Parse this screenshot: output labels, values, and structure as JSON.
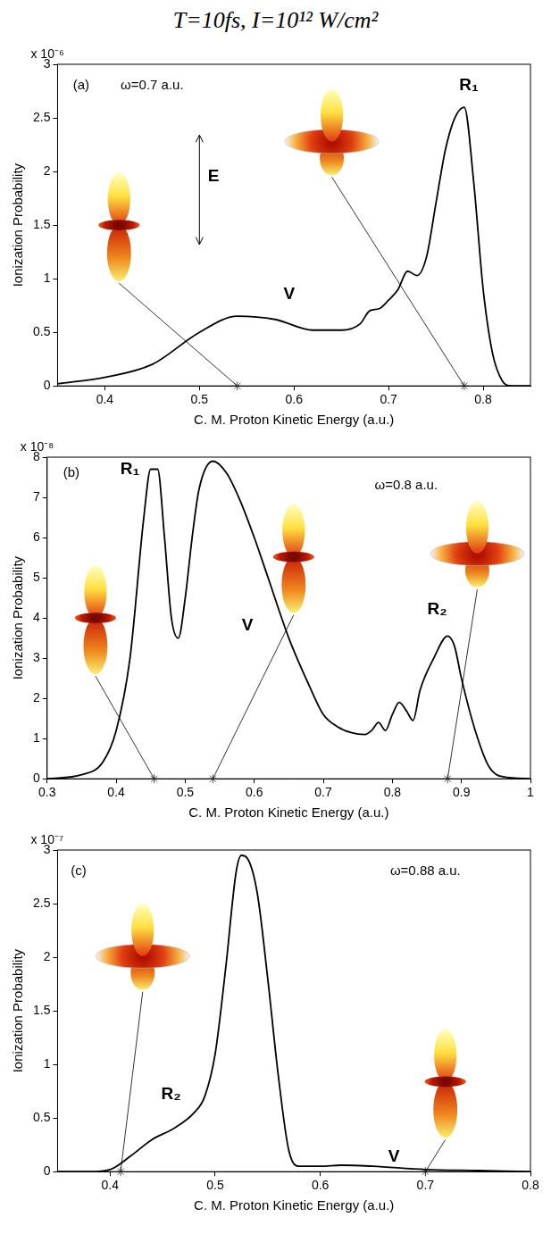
{
  "title": "T=10fs, I=10¹² W/cm²",
  "chart_data": [
    {
      "type": "line",
      "x_label": "C. M. Proton Kinetic Energy (a.u.)",
      "y_label": "Ionization Probability",
      "y_multiplier": "x 10⁻⁶",
      "xlim": [
        0.35,
        0.85
      ],
      "xticks": [
        0.4,
        0.5,
        0.6,
        0.7,
        0.8
      ],
      "ylim": [
        0,
        3
      ],
      "yticks": [
        0,
        0.5,
        1,
        1.5,
        2,
        2.5,
        3
      ],
      "grid": false,
      "color": "#000000",
      "x": [
        0.35,
        0.4,
        0.45,
        0.5,
        0.54,
        0.58,
        0.62,
        0.65,
        0.67,
        0.68,
        0.69,
        0.7,
        0.71,
        0.72,
        0.73,
        0.74,
        0.75,
        0.76,
        0.77,
        0.78,
        0.79,
        0.8,
        0.81,
        0.82,
        0.83,
        0.85
      ],
      "values": [
        0.02,
        0.08,
        0.2,
        0.5,
        0.65,
        0.62,
        0.52,
        0.52,
        0.58,
        0.7,
        0.72,
        0.8,
        0.9,
        1.07,
        1.03,
        1.2,
        1.7,
        2.2,
        2.5,
        2.6,
        1.9,
        0.9,
        0.3,
        0.05,
        0,
        0
      ],
      "markers": [
        0.54,
        0.78
      ],
      "annotations": [
        {
          "text": "(a)",
          "x": 0.375,
          "y": 2.8
        },
        {
          "text": "ω=0.7 a.u.",
          "x": 0.45,
          "y": 2.8
        },
        {
          "text": "R₁",
          "x": 0.785,
          "y": 2.8
        },
        {
          "text": "V",
          "x": 0.595,
          "y": 0.85
        },
        {
          "text": "E",
          "x": 0.515,
          "y": 1.95
        }
      ]
    },
    {
      "type": "line",
      "x_label": "C. M. Proton Kinetic Energy (a.u.)",
      "y_label": "Ionization Probability",
      "y_multiplier": "x 10⁻⁸",
      "xlim": [
        0.3,
        1
      ],
      "xticks": [
        0.3,
        0.4,
        0.5,
        0.6,
        0.7,
        0.8,
        0.9,
        1
      ],
      "ylim": [
        0,
        8
      ],
      "yticks": [
        0,
        1,
        2,
        3,
        4,
        5,
        6,
        7,
        8
      ],
      "grid": false,
      "color": "#000000",
      "x": [
        0.3,
        0.35,
        0.38,
        0.4,
        0.42,
        0.44,
        0.45,
        0.46,
        0.47,
        0.48,
        0.49,
        0.5,
        0.51,
        0.52,
        0.54,
        0.56,
        0.58,
        0.6,
        0.62,
        0.65,
        0.68,
        0.7,
        0.72,
        0.74,
        0.76,
        0.77,
        0.78,
        0.79,
        0.8,
        0.81,
        0.82,
        0.83,
        0.84,
        0.86,
        0.88,
        0.89,
        0.9,
        0.92,
        0.94,
        0.96,
        1
      ],
      "values": [
        0,
        0.1,
        0.4,
        1.2,
        3,
        6.5,
        7.7,
        7.7,
        6,
        4,
        3.5,
        4.5,
        6,
        7.2,
        7.9,
        7.6,
        6.9,
        6,
        5,
        3.5,
        2.3,
        1.6,
        1.3,
        1.15,
        1.1,
        1.2,
        1.4,
        1.2,
        1.6,
        1.9,
        1.7,
        1.45,
        2.2,
        3,
        3.55,
        3.3,
        2.5,
        1.2,
        0.3,
        0.05,
        0
      ],
      "markers": [
        0.455,
        0.54,
        0.88
      ],
      "annotations": [
        {
          "text": "(b)",
          "x": 0.335,
          "y": 7.6
        },
        {
          "text": "R₁",
          "x": 0.42,
          "y": 7.7
        },
        {
          "text": "V",
          "x": 0.59,
          "y": 3.8
        },
        {
          "text": "R₂",
          "x": 0.865,
          "y": 4.2
        },
        {
          "text": "ω=0.8 a.u.",
          "x": 0.82,
          "y": 7.3
        }
      ]
    },
    {
      "type": "line",
      "x_label": "C. M. Proton Kinetic Energy (a.u.)",
      "y_label": "Ionization Probability",
      "y_multiplier": "x 10⁻⁷",
      "xlim": [
        0.35,
        0.8
      ],
      "xticks": [
        0.4,
        0.5,
        0.6,
        0.7,
        0.8
      ],
      "ylim": [
        0,
        3
      ],
      "yticks": [
        0,
        0.5,
        1,
        1.5,
        2,
        2.5,
        3
      ],
      "grid": false,
      "color": "#000000",
      "x": [
        0.35,
        0.38,
        0.4,
        0.42,
        0.44,
        0.46,
        0.48,
        0.49,
        0.5,
        0.51,
        0.52,
        0.525,
        0.53,
        0.54,
        0.55,
        0.56,
        0.57,
        0.58,
        0.6,
        0.62,
        0.65,
        0.7,
        0.75,
        0.8
      ],
      "values": [
        0,
        0,
        0.02,
        0.15,
        0.3,
        0.4,
        0.55,
        0.7,
        1.1,
        1.9,
        2.8,
        2.95,
        2.93,
        2.6,
        1.8,
        0.9,
        0.2,
        0.05,
        0.05,
        0.06,
        0.05,
        0.02,
        0.01,
        0
      ],
      "markers": [
        0.41,
        0.7
      ],
      "annotations": [
        {
          "text": "(c)",
          "x": 0.37,
          "y": 2.8
        },
        {
          "text": "ω=0.88 a.u.",
          "x": 0.7,
          "y": 2.8
        },
        {
          "text": "R₂",
          "x": 0.458,
          "y": 0.72
        },
        {
          "text": "V",
          "x": 0.67,
          "y": 0.14
        }
      ]
    }
  ]
}
